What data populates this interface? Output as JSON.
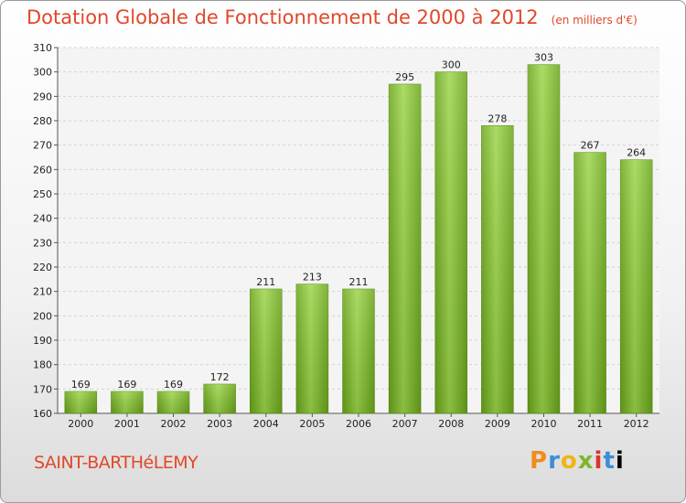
{
  "title": "Dotation Globale de Fonctionnement de 2000 à 2012",
  "subtitle": "(en milliers d'€)",
  "location": "SAINT-BARTHéLEMY",
  "brand": [
    "P",
    "r",
    "o",
    "x",
    "i",
    "t",
    "i"
  ],
  "colors": {
    "accent": "#e0482a",
    "bar_top": "#9fd64a",
    "bar_bottom": "#5e9a12"
  },
  "chart_data": {
    "type": "bar",
    "categories": [
      "2000",
      "2001",
      "2002",
      "2003",
      "2004",
      "2005",
      "2006",
      "2007",
      "2008",
      "2009",
      "2010",
      "2011",
      "2012"
    ],
    "values": [
      169,
      169,
      169,
      172,
      211,
      213,
      211,
      295,
      300,
      278,
      303,
      267,
      264
    ],
    "ylim": [
      160,
      310
    ],
    "yticks": [
      160,
      170,
      180,
      190,
      200,
      210,
      220,
      230,
      240,
      250,
      260,
      270,
      280,
      290,
      300,
      310
    ],
    "grid": true,
    "title": "Dotation Globale de Fonctionnement de 2000 à 2012",
    "xlabel": "",
    "ylabel": ""
  }
}
